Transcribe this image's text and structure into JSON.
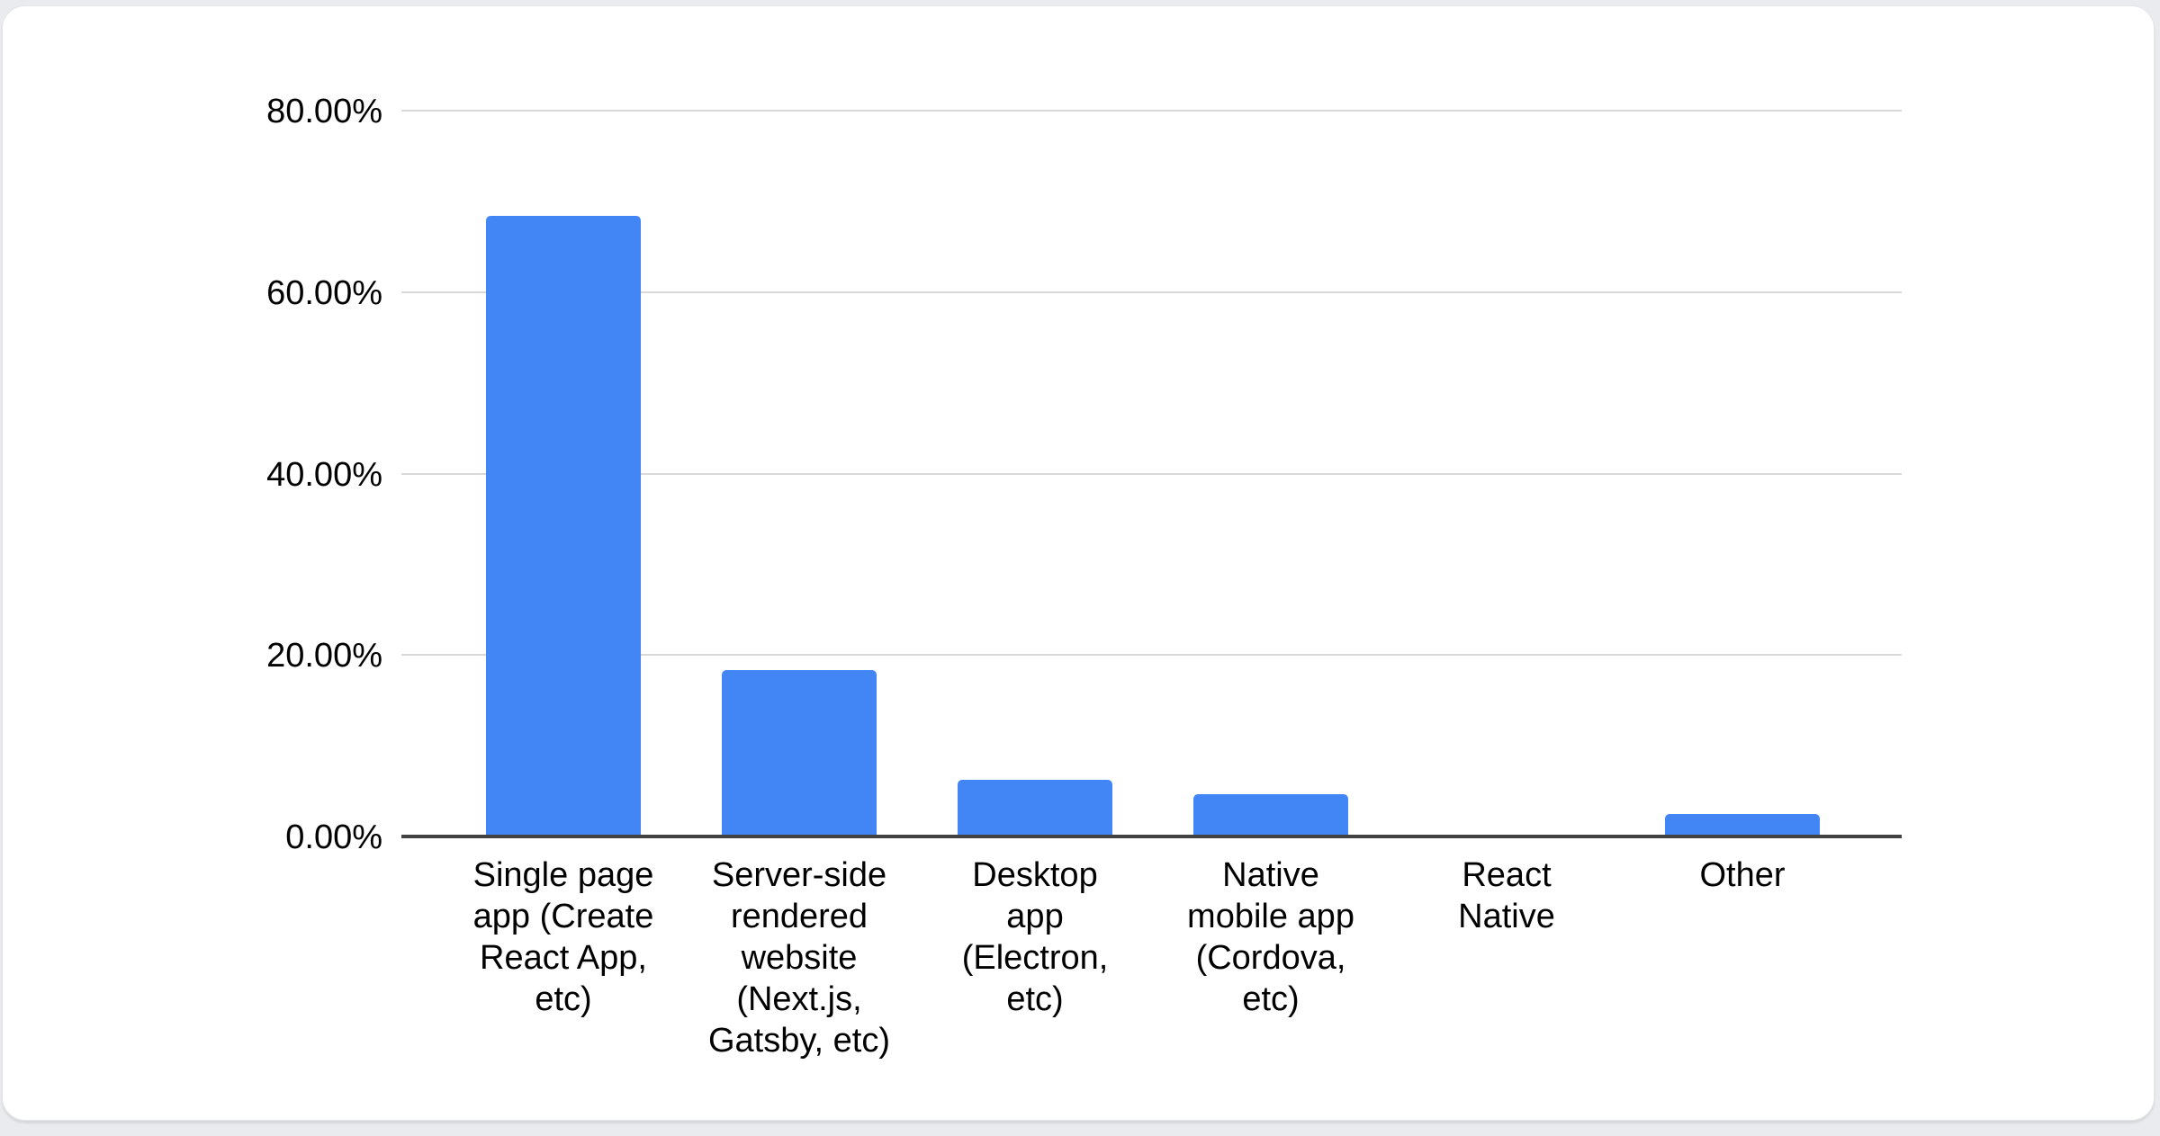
{
  "chart_data": {
    "type": "bar",
    "title": "",
    "xlabel": "",
    "ylabel": "",
    "categories": [
      "Single page app (Create React App, etc)",
      "Server-side rendered website (Next.js, Gatsby, etc)",
      "Desktop app (Electron, etc)",
      "Native mobile app (Cordova, etc)",
      "React Native",
      "Other"
    ],
    "category_lines": [
      [
        "Single page",
        "app (Create",
        "React App,",
        "etc)"
      ],
      [
        "Server-side",
        "rendered",
        "website",
        "(Next.js,",
        "Gatsby, etc)"
      ],
      [
        "Desktop",
        "app",
        "(Electron,",
        "etc)"
      ],
      [
        "Native",
        "mobile app",
        "(Cordova,",
        "etc)"
      ],
      [
        "React",
        "Native"
      ],
      [
        "Other"
      ]
    ],
    "values": [
      68.4,
      18.3,
      6.2,
      4.7,
      0,
      2.5
    ],
    "value_unit": "%",
    "ylim": [
      0,
      80
    ],
    "y_ticks": [
      {
        "value": 80,
        "label": "80.00%"
      },
      {
        "value": 60,
        "label": "60.00%"
      },
      {
        "value": 40,
        "label": "40.00%"
      },
      {
        "value": 20,
        "label": "20.00%"
      },
      {
        "value": 0,
        "label": "0.00%"
      }
    ],
    "grid": "horizontal",
    "legend": "none",
    "colors": {
      "bar": "#4285F4",
      "gridline": "#D9D9D9",
      "axis_line": "#424242",
      "label_text": "#000000",
      "card_background": "#FFFFFF",
      "card_border": "#E4E6E9",
      "page_background": "#E9EBEF"
    }
  }
}
